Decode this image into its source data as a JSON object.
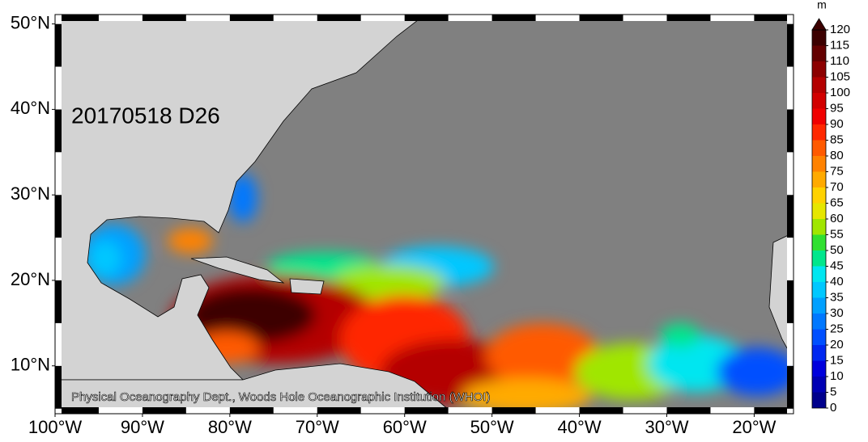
{
  "map": {
    "label": "20170518 D26",
    "credit": "Physical Oceanography Dept., Woods Hole Oceanographic Institution (WHOI)",
    "xlim": [
      -100,
      -15.5
    ],
    "ylim": [
      4.4,
      51.1
    ],
    "xticks": [
      {
        "value": -100,
        "label": "100°W"
      },
      {
        "value": -90,
        "label": "90°W"
      },
      {
        "value": -80,
        "label": "80°W"
      },
      {
        "value": -70,
        "label": "70°W"
      },
      {
        "value": -60,
        "label": "60°W"
      },
      {
        "value": -50,
        "label": "50°W"
      },
      {
        "value": -40,
        "label": "40°W"
      },
      {
        "value": -30,
        "label": "30°W"
      },
      {
        "value": -20,
        "label": "20°W"
      }
    ],
    "yticks": [
      {
        "value": 10,
        "label": "10°N"
      },
      {
        "value": 20,
        "label": "20°N"
      },
      {
        "value": 30,
        "label": "30°N"
      },
      {
        "value": 40,
        "label": "40°N"
      },
      {
        "value": 50,
        "label": "50°N"
      }
    ],
    "colorbar": {
      "unit": "m",
      "lim": [
        0,
        120
      ],
      "ticks": [
        0,
        5,
        10,
        15,
        20,
        25,
        30,
        35,
        40,
        45,
        50,
        55,
        60,
        65,
        70,
        75,
        80,
        85,
        90,
        95,
        100,
        105,
        110,
        115,
        120
      ],
      "colors": [
        "#00008c",
        "#0000b4",
        "#0000dc",
        "#0028f0",
        "#0050ff",
        "#0078ff",
        "#00a0ff",
        "#00c8ff",
        "#00e6f0",
        "#00e68c",
        "#30e030",
        "#a0e600",
        "#e6e600",
        "#ffd200",
        "#ffaa00",
        "#ff8200",
        "#ff5a00",
        "#ff2800",
        "#f00000",
        "#d20000",
        "#b40000",
        "#8c0000",
        "#640000",
        "#3c0000"
      ]
    }
  }
}
